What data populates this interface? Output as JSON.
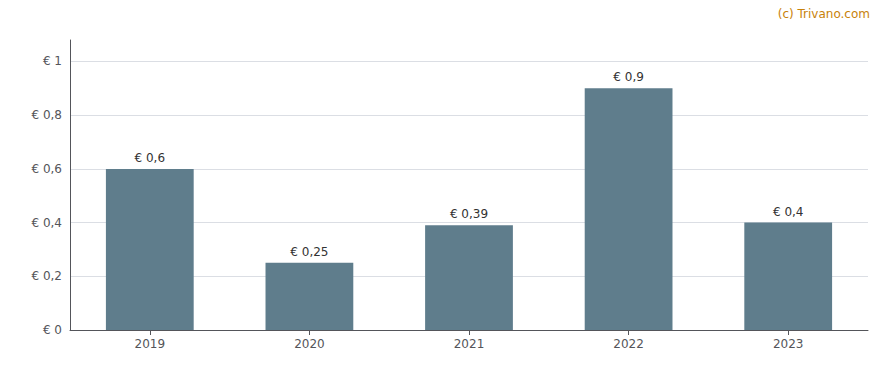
{
  "chart_data": {
    "type": "bar",
    "categories": [
      "2019",
      "2020",
      "2021",
      "2022",
      "2023"
    ],
    "values": [
      0.6,
      0.25,
      0.39,
      0.9,
      0.4
    ],
    "value_labels": [
      "€ 0,6",
      "€ 0,25",
      "€ 0,39",
      "€ 0,9",
      "€ 0,4"
    ],
    "data_labels": true,
    "color": "#5f7d8c",
    "ylim": [
      0,
      1.08
    ],
    "yticks": [
      {
        "value": 0,
        "label": "€ 0"
      },
      {
        "value": 0.2,
        "label": "€ 0,2"
      },
      {
        "value": 0.4,
        "label": "€ 0,4"
      },
      {
        "value": 0.6,
        "label": "€ 0,6"
      },
      {
        "value": 0.8,
        "label": "€ 0,8"
      },
      {
        "value": 1.0,
        "label": "€ 1"
      }
    ],
    "grid": true,
    "annotations": [
      "(c) Trivano.com"
    ]
  }
}
